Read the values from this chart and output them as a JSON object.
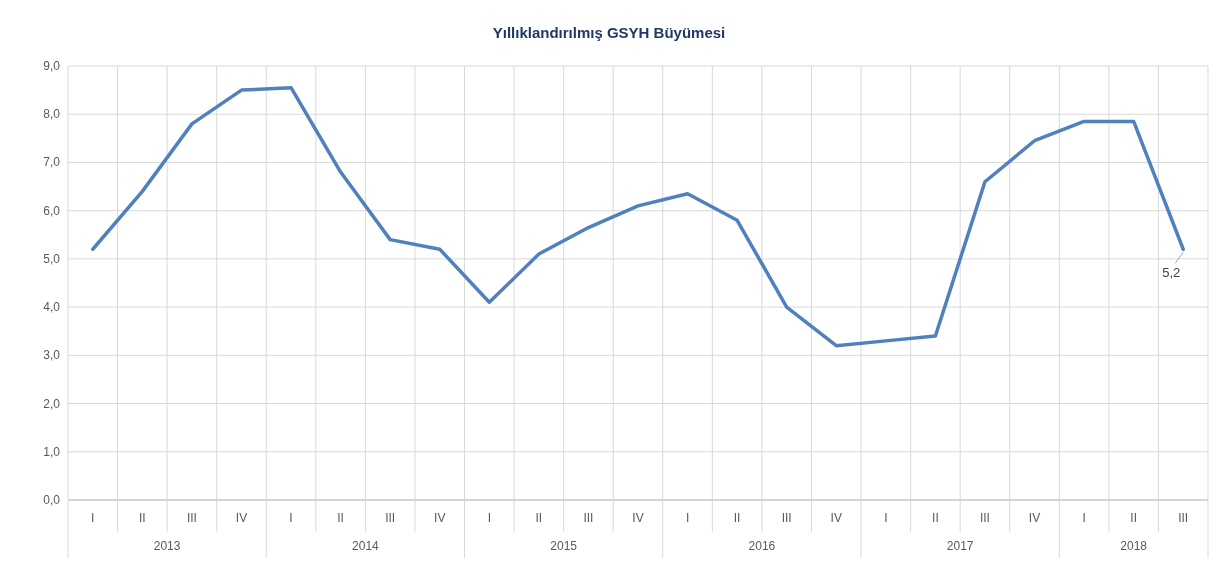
{
  "chart_data": {
    "type": "line",
    "title": "Yıllıklandırılmış GSYH Büyümesi",
    "categories": [
      "I",
      "II",
      "III",
      "IV",
      "I",
      "II",
      "III",
      "IV",
      "I",
      "II",
      "III",
      "IV",
      "I",
      "II",
      "III",
      "IV",
      "I",
      "II",
      "III",
      "IV",
      "I",
      "II",
      "III"
    ],
    "annotations": [
      "2013",
      "2014",
      "2015",
      "2016",
      "2017",
      "2018"
    ],
    "series": [
      {
        "color": "#4f81bd",
        "values": [
          5.2,
          6.4,
          7.8,
          8.5,
          8.55,
          6.8,
          5.4,
          5.2,
          4.1,
          5.1,
          5.65,
          6.1,
          6.35,
          5.8,
          4.0,
          3.2,
          3.3,
          3.4,
          6.6,
          7.45,
          7.85,
          7.85,
          5.2
        ],
        "value_labels": [
          null,
          null,
          null,
          null,
          null,
          null,
          null,
          null,
          null,
          null,
          null,
          null,
          null,
          null,
          null,
          null,
          null,
          null,
          null,
          null,
          null,
          null,
          "5,2"
        ]
      }
    ],
    "ylim": [
      0,
      9
    ],
    "yticks": [
      {
        "value": 0,
        "label": "0,0"
      },
      {
        "value": 1,
        "label": "1,0"
      },
      {
        "value": 2,
        "label": "2,0"
      },
      {
        "value": 3,
        "label": "3,0"
      },
      {
        "value": 4,
        "label": "4,0"
      },
      {
        "value": 5,
        "label": "5,0"
      },
      {
        "value": 6,
        "label": "6,0"
      },
      {
        "value": 7,
        "label": "7,0"
      },
      {
        "value": 8,
        "label": "8,0"
      },
      {
        "value": 9,
        "label": "9,0"
      }
    ],
    "grid": true,
    "marker": "none",
    "line_style": "solid"
  }
}
